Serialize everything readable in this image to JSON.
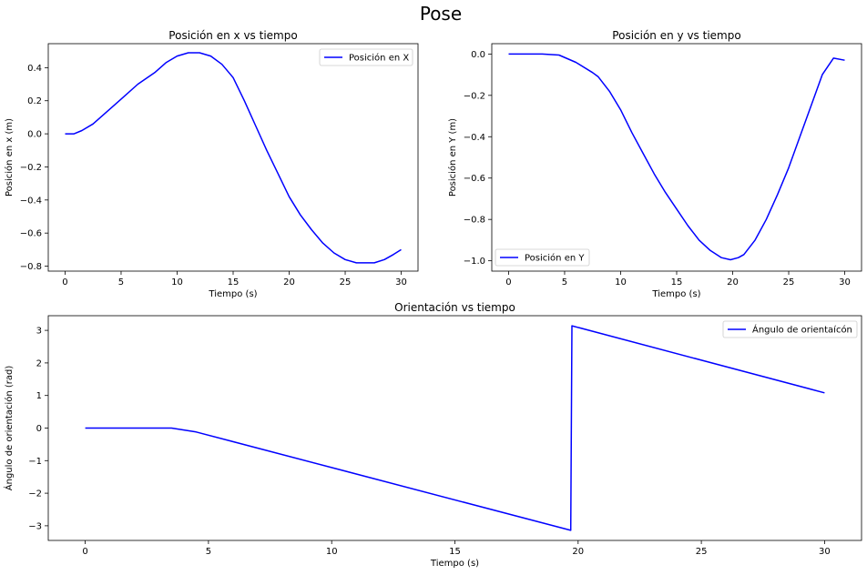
{
  "figure": {
    "title": "Pose"
  },
  "chart_data": [
    {
      "type": "line",
      "title": "Posición en x vs tiempo",
      "xlabel": "Tiempo (s)",
      "ylabel": "Posición en x (m)",
      "xlim": [
        -1.5,
        31.5
      ],
      "ylim": [
        -0.83,
        0.545
      ],
      "xticks": [
        0,
        5,
        10,
        15,
        20,
        25,
        30
      ],
      "xtick_labels": [
        "0",
        "5",
        "10",
        "15",
        "20",
        "25",
        "30"
      ],
      "yticks": [
        0.4,
        0.2,
        0.0,
        -0.2,
        -0.4,
        -0.6,
        -0.8
      ],
      "ytick_labels": [
        "0.4",
        "0.2",
        "0.0",
        "−0.2",
        "−0.4",
        "−0.6",
        "−0.8"
      ],
      "legend": "upper right",
      "grid": false,
      "series": [
        {
          "name": "Posición en X",
          "color": "#0000ff",
          "x": [
            0,
            0.8,
            1.5,
            2.5,
            3.5,
            5,
            6.5,
            8,
            9,
            10,
            11,
            12,
            13,
            14,
            15,
            16,
            17,
            18,
            19,
            20,
            21,
            22,
            23,
            24,
            25,
            26,
            27,
            27.6,
            28.5,
            29.3,
            30
          ],
          "y": [
            0.0,
            0.0,
            0.02,
            0.06,
            0.12,
            0.21,
            0.3,
            0.37,
            0.43,
            0.47,
            0.49,
            0.49,
            0.47,
            0.42,
            0.34,
            0.2,
            0.05,
            -0.1,
            -0.24,
            -0.38,
            -0.49,
            -0.58,
            -0.66,
            -0.72,
            -0.76,
            -0.78,
            -0.78,
            -0.78,
            -0.76,
            -0.73,
            -0.7
          ]
        }
      ]
    },
    {
      "type": "line",
      "title": "Posición en y vs tiempo",
      "xlabel": "Tiempo (s)",
      "ylabel": "Posición en Y (m)",
      "xlim": [
        -1.5,
        31.5
      ],
      "ylim": [
        -1.05,
        0.05
      ],
      "xticks": [
        0,
        5,
        10,
        15,
        20,
        25,
        30
      ],
      "xtick_labels": [
        "0",
        "5",
        "10",
        "15",
        "20",
        "25",
        "30"
      ],
      "yticks": [
        0.0,
        -0.2,
        -0.4,
        -0.6,
        -0.8,
        -1.0
      ],
      "ytick_labels": [
        "0.0",
        "−0.2",
        "−0.4",
        "−0.6",
        "−0.8",
        "−1.0"
      ],
      "legend": "lower left",
      "grid": false,
      "series": [
        {
          "name": "Posición en Y",
          "color": "#0000ff",
          "x": [
            0,
            3,
            4.5,
            6,
            7.5,
            8,
            9,
            10,
            11,
            12,
            13,
            14,
            15,
            16,
            17,
            18,
            19,
            19.8,
            20.5,
            21,
            22,
            23,
            24,
            25,
            26,
            27,
            28,
            29,
            30
          ],
          "y": [
            0.0,
            0.0,
            -0.005,
            -0.04,
            -0.09,
            -0.11,
            -0.18,
            -0.27,
            -0.38,
            -0.48,
            -0.58,
            -0.67,
            -0.75,
            -0.83,
            -0.9,
            -0.95,
            -0.985,
            -0.995,
            -0.985,
            -0.97,
            -0.9,
            -0.8,
            -0.68,
            -0.55,
            -0.4,
            -0.25,
            -0.1,
            -0.02,
            -0.03
          ]
        }
      ]
    },
    {
      "type": "line",
      "title": "Orientación vs tiempo",
      "xlabel": "Tiempo (s)",
      "ylabel": "Ángulo de orientación (rad)",
      "xlim": [
        -1.5,
        31.5
      ],
      "ylim": [
        -3.45,
        3.45
      ],
      "xticks": [
        0,
        5,
        10,
        15,
        20,
        25,
        30
      ],
      "xtick_labels": [
        "0",
        "5",
        "10",
        "15",
        "20",
        "25",
        "30"
      ],
      "yticks": [
        3,
        2,
        1,
        0,
        -1,
        -2,
        -3
      ],
      "ytick_labels": [
        "3",
        "2",
        "1",
        "0",
        "−1",
        "−2",
        "−3"
      ],
      "legend": "upper right",
      "grid": false,
      "series": [
        {
          "name": "Ángulo de orientaícón",
          "color": "#0000ff",
          "x": [
            0,
            3.5,
            4.5,
            19.7,
            19.75,
            30
          ],
          "y": [
            0.0,
            0.0,
            -0.12,
            -3.14,
            3.14,
            1.08
          ]
        }
      ]
    }
  ]
}
